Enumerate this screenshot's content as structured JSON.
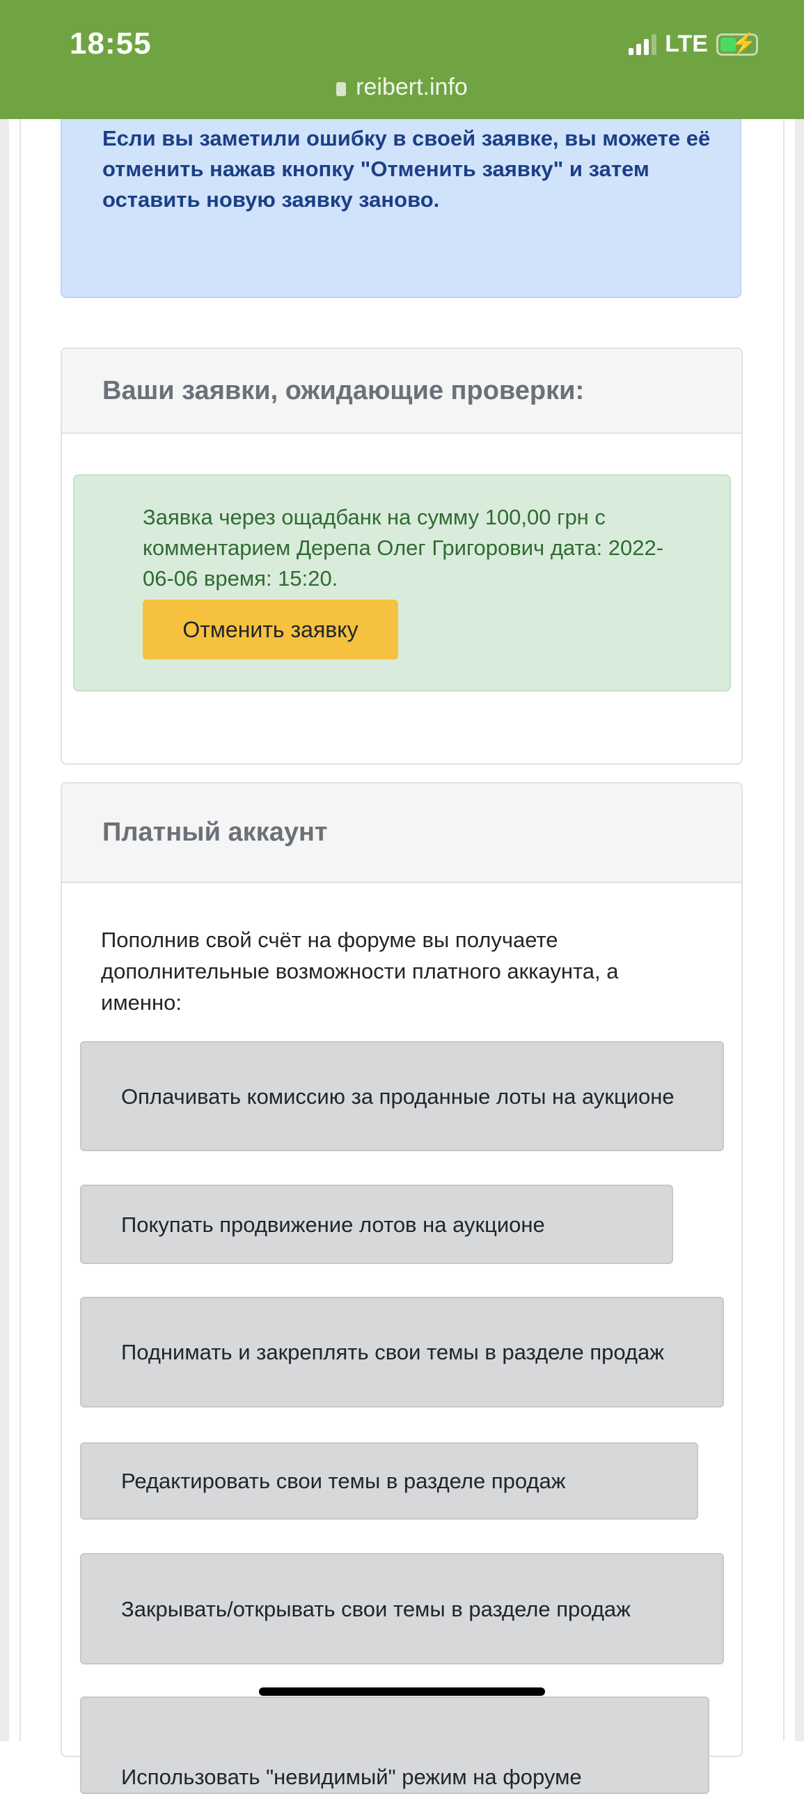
{
  "status_bar": {
    "time": "18:55",
    "network": "LTE",
    "battery_charging": true,
    "signal_bars": 3
  },
  "browser": {
    "url": "reibert.info",
    "lock_icon": "lock-icon"
  },
  "info_alert": {
    "text": "Если вы заметили ошибку в своей заявке, вы можете её отменить нажав кнопку \"Отменить заявку\" и затем оставить новую заявку заново."
  },
  "pending_panel": {
    "title": "Ваши заявки, ожидающие проверки:",
    "request_text": "Заявка через ощадбанк на сумму 100,00 грн с комментарием Дерепа Олег Григорович дата: 2022-06-06 время: 15:20.",
    "cancel_label": "Отменить заявку"
  },
  "paid_panel": {
    "title": "Платный аккаунт",
    "intro": "Пополнив свой счёт на форуме вы получаете дополнительные возможности платного аккаунта, а именно:",
    "items": [
      "Оплачивать комиссию за проданные лоты на аукционе",
      "Покупать продвижение лотов на аукционе",
      "Поднимать и закреплять свои темы в разделе продаж",
      "Редактировать свои темы в разделе продаж",
      "Закрывать/открывать свои темы в разделе продаж",
      "Использовать \"невидимый\" режим на форуме"
    ]
  },
  "colors": {
    "header": "#70a442",
    "info_bg": "#d1e3fa",
    "success_bg": "#d9ecdb",
    "button": "#f5c13f",
    "item_bg": "#d7d8da"
  }
}
